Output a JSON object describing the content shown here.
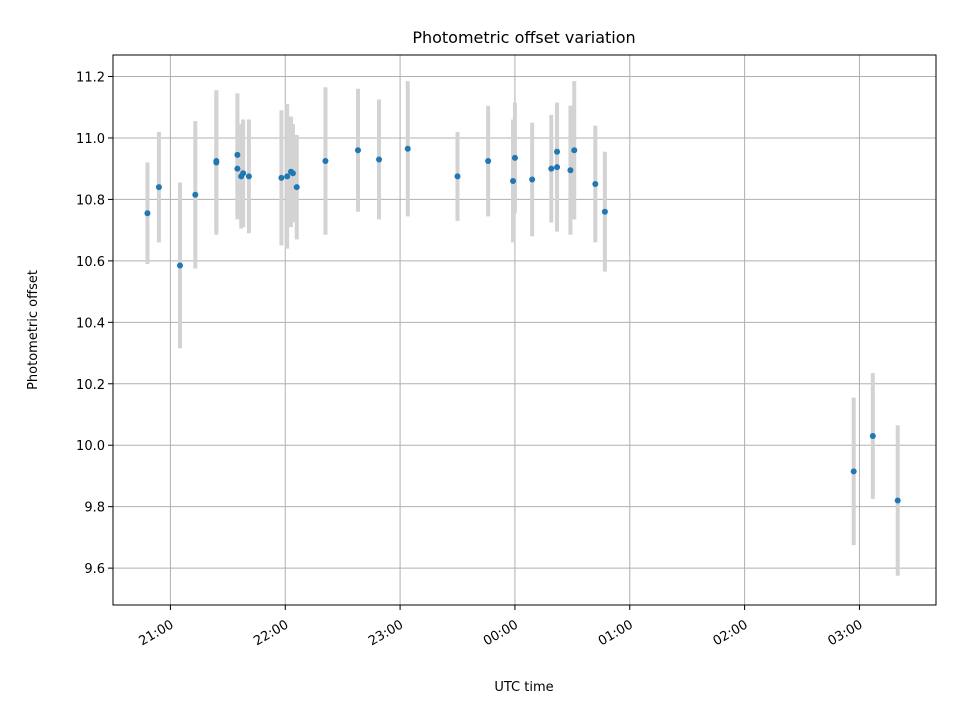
{
  "chart_data": {
    "type": "scatter",
    "title": "Photometric offset variation",
    "xlabel": "UTC time",
    "ylabel": "Photometric offset",
    "x_axis_type": "time",
    "xlim": [
      "20:30",
      "03:40"
    ],
    "ylim": [
      9.48,
      11.27
    ],
    "grid": true,
    "legend": "none",
    "x_ticks": [
      "21:00",
      "22:00",
      "23:00",
      "00:00",
      "01:00",
      "02:00",
      "03:00"
    ],
    "y_ticks": [
      "9.6",
      "9.8",
      "10.0",
      "10.2",
      "10.4",
      "10.6",
      "10.8",
      "11.0",
      "11.2"
    ],
    "colors": {
      "point": "#1f77b4",
      "errorbar": "#d3d3d3",
      "grid": "#b0b0b0"
    },
    "series": [
      {
        "points": [
          {
            "x": "20:48",
            "y": 10.755,
            "err": 0.165
          },
          {
            "x": "20:54",
            "y": 10.84,
            "err": 0.18
          },
          {
            "x": "21:05",
            "y": 10.585,
            "err": 0.27
          },
          {
            "x": "21:13",
            "y": 10.815,
            "err": 0.24
          },
          {
            "x": "21:24",
            "y": 10.92,
            "err": 0.235
          },
          {
            "x": "21:24",
            "y": 10.925,
            "err": 0.23
          },
          {
            "x": "21:35",
            "y": 10.945,
            "err": 0.2
          },
          {
            "x": "21:35",
            "y": 10.9,
            "err": 0.165
          },
          {
            "x": "21:37",
            "y": 10.875,
            "err": 0.17
          },
          {
            "x": "21:38",
            "y": 10.885,
            "err": 0.175
          },
          {
            "x": "21:41",
            "y": 10.875,
            "err": 0.185
          },
          {
            "x": "21:58",
            "y": 10.87,
            "err": 0.22
          },
          {
            "x": "22:01",
            "y": 10.875,
            "err": 0.235
          },
          {
            "x": "22:03",
            "y": 10.89,
            "err": 0.18
          },
          {
            "x": "22:04",
            "y": 10.885,
            "err": 0.16
          },
          {
            "x": "22:06",
            "y": 10.84,
            "err": 0.17
          },
          {
            "x": "22:21",
            "y": 10.925,
            "err": 0.24
          },
          {
            "x": "22:38",
            "y": 10.96,
            "err": 0.2
          },
          {
            "x": "22:49",
            "y": 10.93,
            "err": 0.195
          },
          {
            "x": "23:04",
            "y": 10.965,
            "err": 0.22
          },
          {
            "x": "23:30",
            "y": 10.875,
            "err": 0.145
          },
          {
            "x": "23:46",
            "y": 10.925,
            "err": 0.18
          },
          {
            "x": "23:59",
            "y": 10.86,
            "err": 0.2
          },
          {
            "x": "00:00",
            "y": 10.935,
            "err": 0.18
          },
          {
            "x": "00:09",
            "y": 10.865,
            "err": 0.185
          },
          {
            "x": "00:19",
            "y": 10.9,
            "err": 0.175
          },
          {
            "x": "00:22",
            "y": 10.955,
            "err": 0.145
          },
          {
            "x": "00:22",
            "y": 10.905,
            "err": 0.21
          },
          {
            "x": "00:29",
            "y": 10.895,
            "err": 0.21
          },
          {
            "x": "00:31",
            "y": 10.96,
            "err": 0.225
          },
          {
            "x": "00:42",
            "y": 10.85,
            "err": 0.19
          },
          {
            "x": "00:47",
            "y": 10.76,
            "err": 0.195
          },
          {
            "x": "02:57",
            "y": 9.915,
            "err": 0.24
          },
          {
            "x": "03:07",
            "y": 10.03,
            "err": 0.205
          },
          {
            "x": "03:20",
            "y": 9.82,
            "err": 0.245
          }
        ]
      }
    ]
  }
}
